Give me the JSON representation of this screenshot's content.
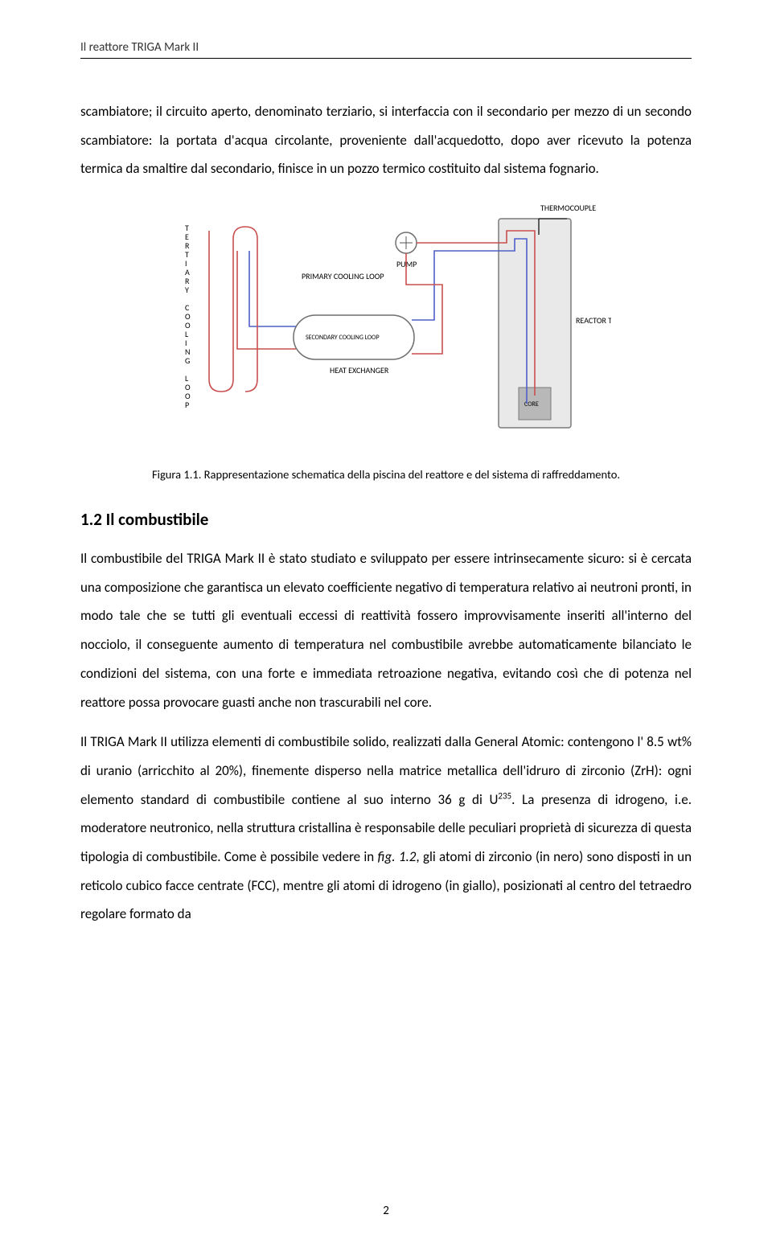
{
  "running_head": "Il reattore TRIGA Mark II",
  "para1": "scambiatore; il circuito aperto, denominato terziario, si interfaccia con il secondario per mezzo di un secondo scambiatore: la portata d'acqua circolante, proveniente dall'acquedotto, dopo aver ricevuto la potenza termica da smaltire dal secondario, finisce in un pozzo termico costituito dal sistema fognario.",
  "figure": {
    "caption": "Figura 1.1. Rappresentazione schematica della piscina del reattore e del sistema di raffreddamento.",
    "labels": {
      "tertiary_vertical": "TERTIARY COOLING LOOP",
      "primary": "PRIMARY COOLING LOOP",
      "secondary": "SECONDARY COOLING LOOP",
      "heat_exch": "HEAT EXCHANGER",
      "pump": "PUMP",
      "thermocouple": "THERMOCOUPLE",
      "reactor_tank": "REACTOR TANK",
      "core": "CORE"
    },
    "colors": {
      "tertiary_line": "#c94f4f",
      "secondary_line": "#4f5fc9",
      "primary_hot": "#c94f4f",
      "primary_cold": "#4f5fc9",
      "tank_fill": "#e9e9e9",
      "tank_stroke": "#7a7a7a",
      "core_fill": "#b8b8b8",
      "heat_exch_stroke": "#6f6f6f",
      "stroke_width": 1.6
    }
  },
  "section_head": "1.2  Il combustibile",
  "para2": "Il combustibile del TRIGA Mark II è stato studiato e sviluppato per essere intrinsecamente sicuro: si è cercata una composizione che garantisca un elevato coefficiente negativo di temperatura relativo ai neutroni pronti, in modo tale che se tutti gli eventuali eccessi di reattività fossero improvvisamente inseriti all'interno del nocciolo, il conseguente aumento di temperatura nel combustibile avrebbe automaticamente bilanciato le condizioni del sistema, con una forte e immediata retroazione negativa, evitando così che di potenza nel reattore possa provocare guasti anche non trascurabili nel core.",
  "para3_pre": "Il TRIGA Mark II utilizza elementi di combustibile solido, realizzati dalla General Atomic: contengono l' 8.5 wt% di uranio (arricchito al 20%), finemente disperso nella matrice metallica dell'idruro di zirconio (ZrH): ogni elemento standard di combustibile contiene al suo interno 36 g di U",
  "para3_sup": "235",
  "para3_post": ". La presenza di idrogeno, i.e. moderatore neutronico, nella struttura cristallina è responsabile delle peculiari proprietà di sicurezza di questa tipologia di combustibile. Come è possibile vedere in ",
  "para3_figref": "fig. 1.2",
  "para3_tail": ", gli atomi di zirconio (in nero) sono disposti in un reticolo cubico facce centrate (FCC), mentre gli atomi di idrogeno (in giallo), posizionati al centro del tetraedro regolare formato da",
  "page_number": "2"
}
